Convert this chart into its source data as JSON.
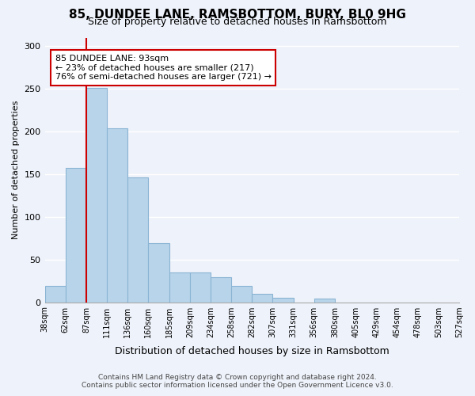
{
  "title": "85, DUNDEE LANE, RAMSBOTTOM, BURY, BL0 9HG",
  "subtitle": "Size of property relative to detached houses in Ramsbottom",
  "xlabel": "Distribution of detached houses by size in Ramsbottom",
  "ylabel": "Number of detached properties",
  "bar_values": [
    19,
    157,
    251,
    204,
    146,
    69,
    35,
    35,
    29,
    19,
    10,
    5,
    0,
    4,
    0,
    0,
    0,
    0,
    0
  ],
  "tick_labels": [
    "38sqm",
    "62sqm",
    "87sqm",
    "111sqm",
    "136sqm",
    "160sqm",
    "185sqm",
    "209sqm",
    "234sqm",
    "258sqm",
    "282sqm",
    "307sqm",
    "331sqm",
    "356sqm",
    "380sqm",
    "405sqm",
    "429sqm",
    "454sqm",
    "478sqm",
    "503sqm",
    "527sqm"
  ],
  "bar_color": "#b8d4ea",
  "bar_edge_color": "#8ab4d4",
  "marker_bar_index": 2,
  "marker_line_color": "#cc0000",
  "ylim": [
    0,
    310
  ],
  "yticks": [
    0,
    50,
    100,
    150,
    200,
    250,
    300
  ],
  "annotation_title": "85 DUNDEE LANE: 93sqm",
  "annotation_line1": "← 23% of detached houses are smaller (217)",
  "annotation_line2": "76% of semi-detached houses are larger (721) →",
  "annotation_box_color": "#ffffff",
  "annotation_box_edge": "#cc0000",
  "footer_line1": "Contains HM Land Registry data © Crown copyright and database right 2024.",
  "footer_line2": "Contains public sector information licensed under the Open Government Licence v3.0.",
  "background_color": "#eef2fa",
  "grid_color": "#ffffff"
}
